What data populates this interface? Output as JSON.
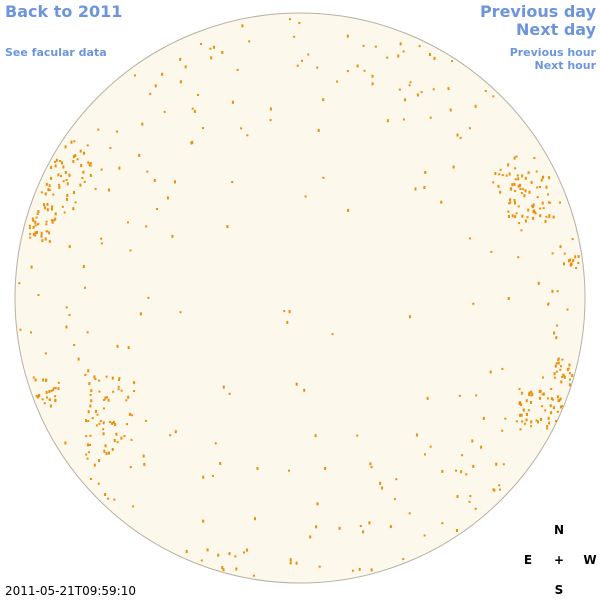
{
  "nav": {
    "back": "Back to 2011",
    "facular": "See facular data",
    "previous_day": "Previous day",
    "next_day": "Next day",
    "previous_hour": "Previous hour",
    "next_hour": "Next hour"
  },
  "timestamp": "2011-05-21T09:59:10",
  "compass": {
    "north": "N",
    "east": "E",
    "center": "+",
    "west": "W",
    "south": "S"
  }
}
